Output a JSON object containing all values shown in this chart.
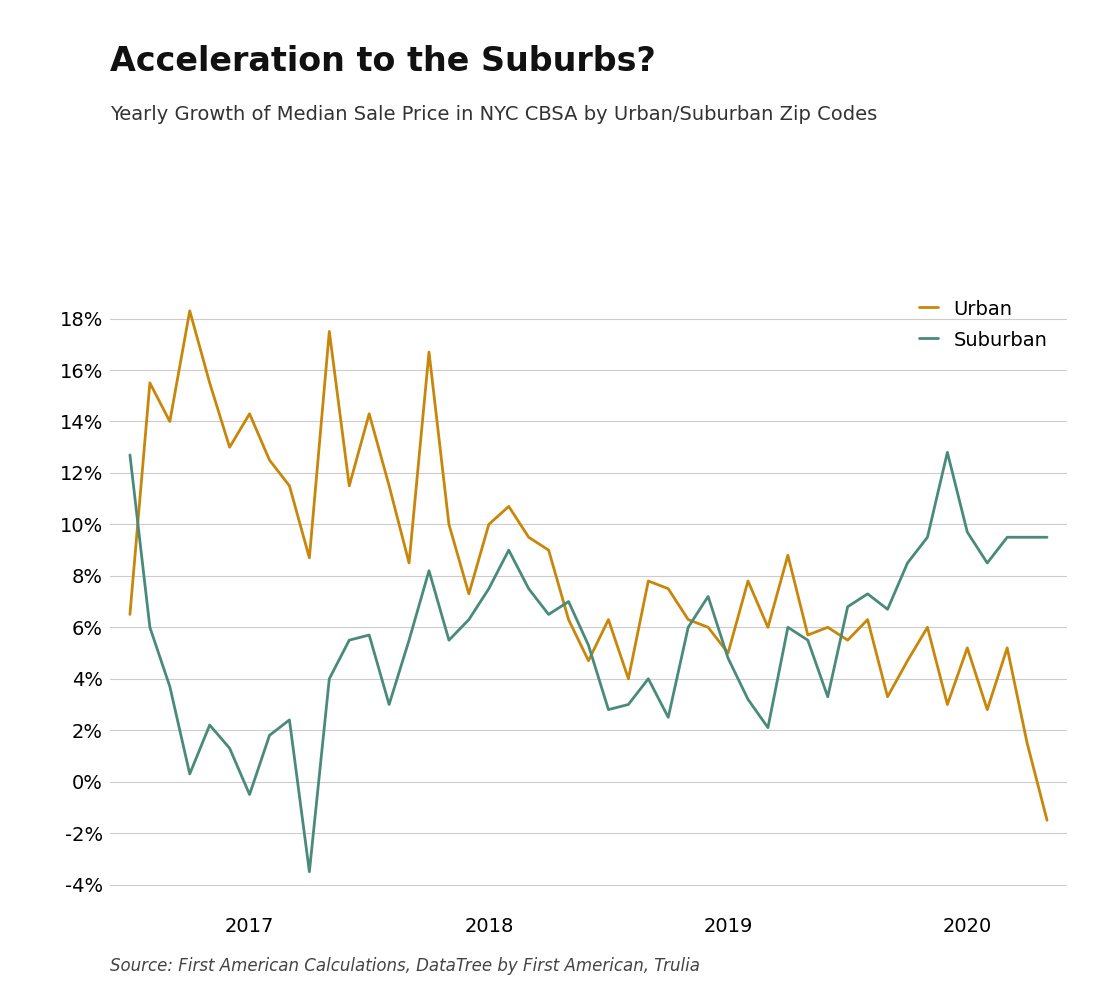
{
  "title": "Acceleration to the Suburbs?",
  "subtitle": "Yearly Growth of Median Sale Price in NYC CBSA by Urban/Suburban Zip Codes",
  "source": "Source: First American Calculations, DataTree by First American, Trulia",
  "urban_color": "#C8860A",
  "suburban_color": "#4A8A7A",
  "background_color": "#FFFFFF",
  "line_width": 2.0,
  "ylim": [
    -0.046,
    0.195
  ],
  "yticks": [
    -0.04,
    -0.02,
    0.0,
    0.02,
    0.04,
    0.06,
    0.08,
    0.1,
    0.12,
    0.14,
    0.16,
    0.18
  ],
  "urban_y": [
    0.065,
    0.155,
    0.14,
    0.183,
    0.155,
    0.13,
    0.143,
    0.125,
    0.115,
    0.087,
    0.175,
    0.115,
    0.143,
    0.115,
    0.085,
    0.167,
    0.1,
    0.073,
    0.1,
    0.107,
    0.095,
    0.09,
    0.063,
    0.047,
    0.063,
    0.04,
    0.078,
    0.075,
    0.063,
    0.06,
    0.05,
    0.078,
    0.06,
    0.088,
    0.057,
    0.06,
    0.055,
    0.063,
    0.033,
    0.047,
    0.06,
    0.03,
    0.052,
    0.028,
    0.052,
    0.015,
    -0.015
  ],
  "suburban_y": [
    0.127,
    0.06,
    0.037,
    0.003,
    0.022,
    0.013,
    -0.005,
    0.018,
    0.024,
    -0.035,
    0.04,
    0.055,
    0.057,
    0.03,
    0.055,
    0.082,
    0.055,
    0.063,
    0.075,
    0.09,
    0.075,
    0.065,
    0.07,
    0.053,
    0.028,
    0.03,
    0.04,
    0.025,
    0.06,
    0.072,
    0.048,
    0.032,
    0.021,
    0.06,
    0.055,
    0.033,
    0.068,
    0.073,
    0.067,
    0.085,
    0.095,
    0.128,
    0.097,
    0.085,
    0.095,
    0.095,
    0.095
  ],
  "title_fontsize": 24,
  "subtitle_fontsize": 14,
  "source_fontsize": 12,
  "tick_fontsize": 14,
  "legend_fontsize": 14
}
